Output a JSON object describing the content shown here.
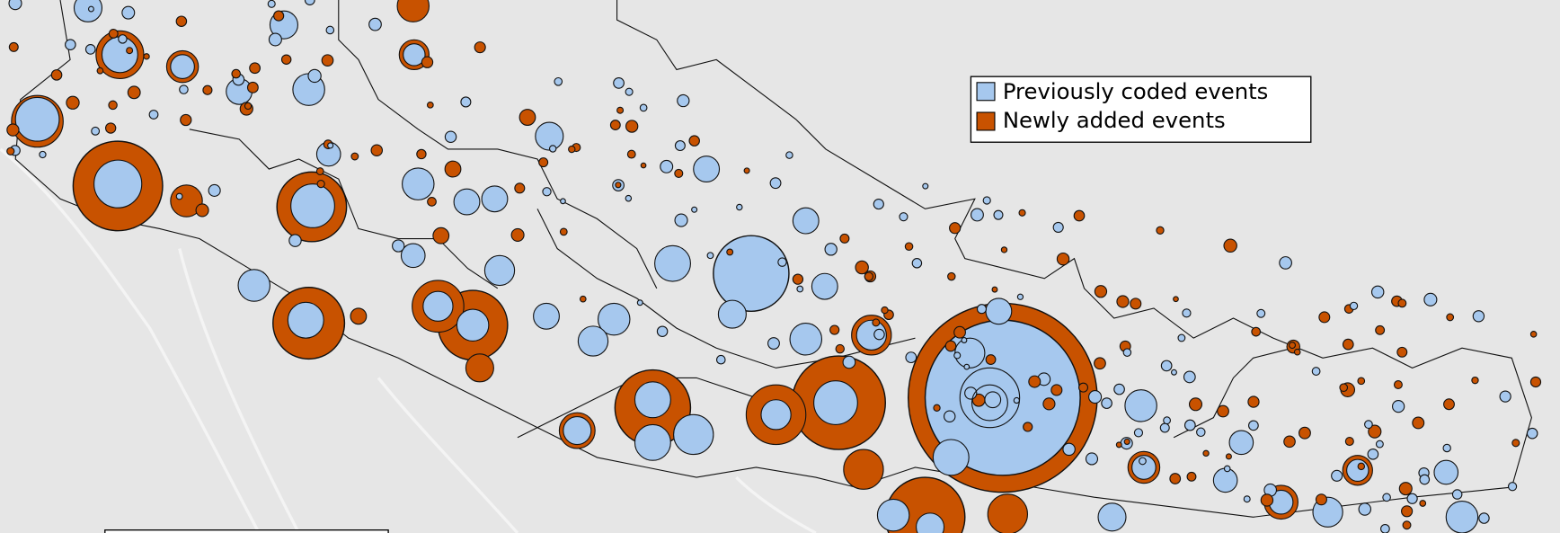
{
  "legend": {
    "items": [
      {
        "label": "Previously coded events",
        "color": "#a6c8ee"
      },
      {
        "label": "Newly added events",
        "color": "#c85200"
      }
    ]
  }
}
